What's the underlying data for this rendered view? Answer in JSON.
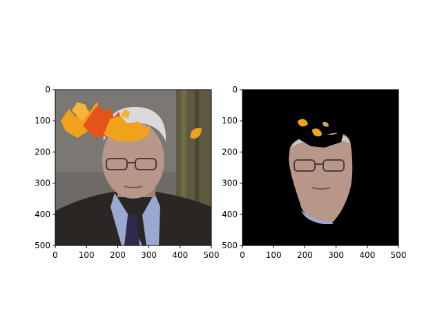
{
  "chart_data": [
    {
      "type": "image",
      "title": "",
      "xlabel": "",
      "ylabel": "",
      "xlim": [
        0,
        500
      ],
      "ylim": [
        500,
        0
      ],
      "x_ticks": [
        0,
        100,
        200,
        300,
        400,
        500
      ],
      "y_ticks": [
        0,
        100,
        200,
        300,
        400,
        500
      ],
      "image": "photograph of a white-haired man in glasses and dark suit with autumn leaves overlaid on the hair and near the upper right"
    },
    {
      "type": "image",
      "title": "",
      "xlabel": "",
      "ylabel": "",
      "xlim": [
        0,
        500
      ],
      "ylim": [
        500,
        0
      ],
      "x_ticks": [
        0,
        100,
        200,
        300,
        400,
        500
      ],
      "y_ticks": [
        0,
        100,
        200,
        300,
        400,
        500
      ],
      "image": "face segmentation mask: only the face region and some leaf fragments are visible on a black background"
    }
  ],
  "colors": {
    "background_left": "#6e6a68",
    "mask_background": "#000000",
    "suit": "#2a2624",
    "shirt": "#9aa9d1",
    "hair": "#d9dadd",
    "skin": "#b9968a",
    "leaf_orange": "#f0a21c",
    "leaf_red": "#e4541a"
  }
}
